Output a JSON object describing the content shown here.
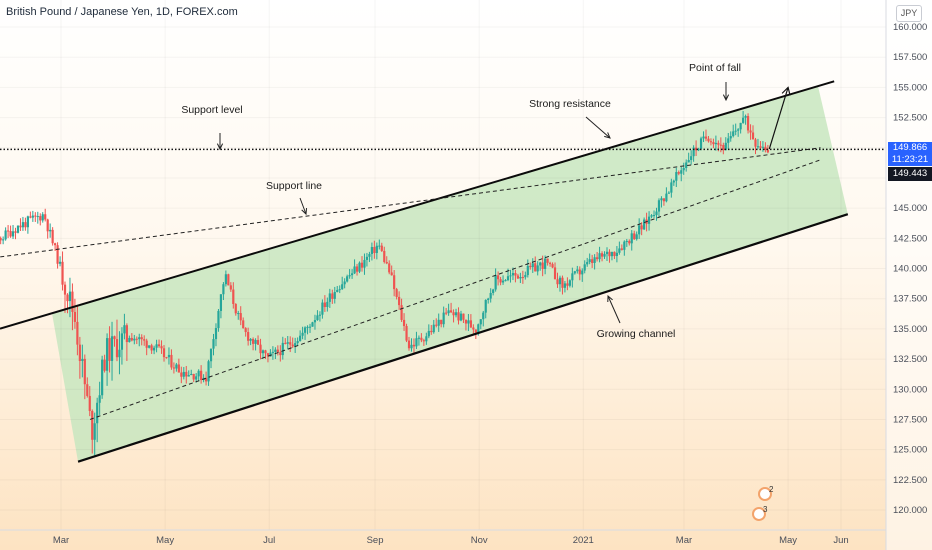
{
  "header": {
    "title": "British Pound / Japanese Yen, 1D, FOREX.com",
    "currency": "JPY"
  },
  "price_tags": {
    "current_price": "149.866",
    "countdown": "11:23:21",
    "level_price": "149.443"
  },
  "annotations": {
    "support_level": "Support level",
    "support_line": "Support line",
    "strong_resistance": "Strong resistance",
    "point_of_fall": "Point of fall",
    "growing_channel": "Growing channel"
  },
  "events": {
    "badge_1_count": "2",
    "badge_2_count": "3"
  },
  "colors": {
    "channel_fill": "#c8e6c0",
    "up_candle": "#26a69a",
    "down_candle": "#ef5350",
    "accent": "#2962ff"
  },
  "chart_data": {
    "type": "candlestick",
    "title": "British Pound / Japanese Yen, 1D, FOREX.com",
    "ylim": [
      118.0,
      163.0
    ],
    "y_ticks": [
      120,
      122.5,
      125,
      127.5,
      130,
      132.5,
      135,
      137.5,
      140,
      142.5,
      145,
      147.5,
      150,
      152.5,
      155,
      157.5,
      160
    ],
    "y_tick_labels": [
      "120.000",
      "122.500",
      "125.000",
      "127.500",
      "130.000",
      "132.500",
      "135.000",
      "137.500",
      "140.000",
      "142.500",
      "145.000",
      "147.500",
      "150.000",
      "152.500",
      "155.000",
      "157.500",
      "160.000"
    ],
    "x_ticks": [
      {
        "date": "2020-03-01",
        "label": "Mar"
      },
      {
        "date": "2020-05-01",
        "label": "May"
      },
      {
        "date": "2020-07-01",
        "label": "Jul"
      },
      {
        "date": "2020-09-01",
        "label": "Sep"
      },
      {
        "date": "2020-11-01",
        "label": "Nov"
      },
      {
        "date": "2021-01-01",
        "label": "2021"
      },
      {
        "date": "2021-03-01",
        "label": "Mar"
      },
      {
        "date": "2021-05-01",
        "label": "May"
      },
      {
        "date": "2021-06-01",
        "label": "Jun"
      }
    ],
    "price_path": [
      [
        "2020-01-01",
        141.5
      ],
      [
        "2020-01-20",
        142.0
      ],
      [
        "2020-02-05",
        143.5
      ],
      [
        "2020-02-20",
        144.5
      ],
      [
        "2020-03-03",
        139.0
      ],
      [
        "2020-03-09",
        136.0
      ],
      [
        "2020-03-19",
        126.5
      ],
      [
        "2020-03-27",
        133.0
      ],
      [
        "2020-04-10",
        134.5
      ],
      [
        "2020-04-25",
        133.5
      ],
      [
        "2020-05-10",
        131.5
      ],
      [
        "2020-05-25",
        131.0
      ],
      [
        "2020-06-05",
        139.5
      ],
      [
        "2020-06-15",
        135.0
      ],
      [
        "2020-06-30",
        132.5
      ],
      [
        "2020-07-20",
        134.5
      ],
      [
        "2020-08-10",
        138.5
      ],
      [
        "2020-08-25",
        140.5
      ],
      [
        "2020-09-03",
        142.0
      ],
      [
        "2020-09-10",
        139.5
      ],
      [
        "2020-09-21",
        133.5
      ],
      [
        "2020-10-01",
        134.5
      ],
      [
        "2020-10-15",
        136.5
      ],
      [
        "2020-10-30",
        135.0
      ],
      [
        "2020-11-10",
        139.0
      ],
      [
        "2020-11-25",
        139.5
      ],
      [
        "2020-12-10",
        140.5
      ],
      [
        "2020-12-20",
        138.5
      ],
      [
        "2021-01-05",
        140.5
      ],
      [
        "2021-01-20",
        141.5
      ],
      [
        "2021-02-05",
        143.5
      ],
      [
        "2021-02-20",
        146.5
      ],
      [
        "2021-03-05",
        149.5
      ],
      [
        "2021-03-15",
        151.0
      ],
      [
        "2021-03-25",
        150.0
      ],
      [
        "2021-04-05",
        152.5
      ],
      [
        "2021-04-12",
        150.5
      ],
      [
        "2021-04-20",
        149.9
      ]
    ],
    "drawings": {
      "channel_upper": [
        [
          "2020-01-01",
          134.0
        ],
        [
          "2021-05-28",
          155.5
        ]
      ],
      "channel_lower": [
        [
          "2020-03-11",
          124.0
        ],
        [
          "2021-06-05",
          144.5
        ]
      ],
      "channel_midline": [
        [
          "2020-03-18",
          127.5
        ],
        [
          "2021-05-20",
          149.0
        ]
      ],
      "support_line": [
        [
          "2020-01-01",
          140.5
        ],
        [
          "2021-05-20",
          150.0
        ]
      ],
      "support_level": 149.866,
      "projection": [
        [
          "2021-04-20",
          149.9
        ],
        [
          "2021-05-01",
          155.0
        ]
      ]
    }
  }
}
